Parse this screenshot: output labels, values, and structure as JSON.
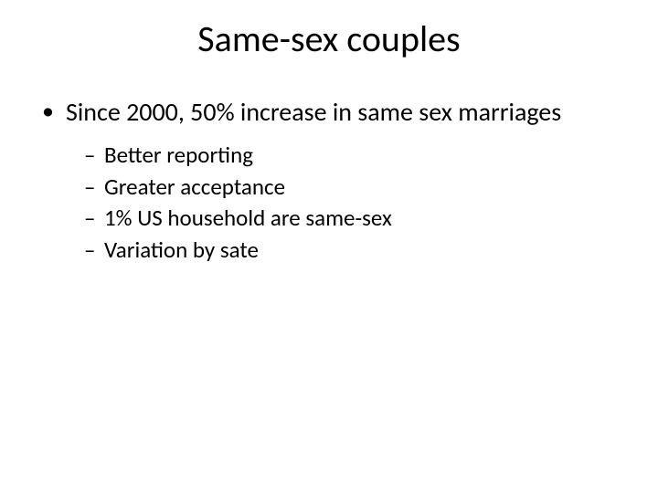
{
  "slide": {
    "title": "Same-sex couples",
    "bullets": {
      "level1_text": "Since 2000, 50% increase in same sex marriages",
      "level2": [
        "Better reporting",
        "Greater acceptance",
        "1% US household are same-sex",
        "Variation by sate"
      ]
    }
  },
  "style": {
    "background_color": "#ffffff",
    "text_color": "#000000",
    "title_fontsize": 40,
    "level1_fontsize": 28,
    "level2_fontsize": 25,
    "font_family": "Calibri"
  }
}
